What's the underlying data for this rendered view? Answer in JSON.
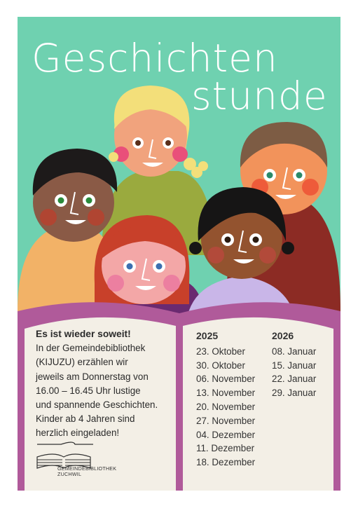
{
  "title": {
    "line1": "Geschichten",
    "line2": "stunde"
  },
  "intro": {
    "heading": "Es ist wieder soweit!",
    "lines": [
      "In der Gemeindebibliothek",
      "(KIJUZU) erzählen wir",
      "jeweils am Donnerstag von",
      "16.00 – 16.45 Uhr lustige",
      "und spannende Geschichten.",
      "Kinder ab 4 Jahren sind",
      "herzlich eingeladen!"
    ]
  },
  "logo": {
    "line1": "GEMEINDEBIBLIOTHEK",
    "line2": "ZUCHWIL"
  },
  "schedule": [
    {
      "year": "2025",
      "dates": [
        "23. Oktober",
        "30. Oktober",
        "06. November",
        "13. November",
        "20. November",
        "27. November",
        "04. Dezember",
        "11. Dezember",
        "18. Dezember"
      ]
    },
    {
      "year": "2026",
      "dates": [
        "08. Januar",
        "15. Januar",
        "22. Januar",
        "29. Januar"
      ]
    }
  ],
  "colors": {
    "background": "#6fd1b0",
    "book_cover": "#b05a9a",
    "pages": "#f3efe6",
    "title": "#ffffff"
  }
}
